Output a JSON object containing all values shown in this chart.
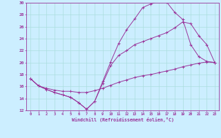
{
  "title": "",
  "xlabel": "Windchill (Refroidissement éolien,°C)",
  "background_color": "#cceeff",
  "grid_color": "#aadddd",
  "line_color": "#993399",
  "xlim": [
    -0.5,
    23.5
  ],
  "ylim": [
    12,
    30
  ],
  "xticks": [
    0,
    1,
    2,
    3,
    4,
    5,
    6,
    7,
    8,
    9,
    10,
    11,
    12,
    13,
    14,
    15,
    16,
    17,
    18,
    19,
    20,
    21,
    22,
    23
  ],
  "yticks": [
    12,
    14,
    16,
    18,
    20,
    22,
    24,
    26,
    28,
    30
  ],
  "line1_x": [
    0,
    1,
    2,
    3,
    4,
    5,
    6,
    7,
    8,
    9,
    10,
    11,
    12,
    13,
    14,
    15,
    16,
    17,
    18,
    19,
    20,
    21,
    22,
    23
  ],
  "line1_y": [
    17.3,
    16.1,
    15.5,
    15.0,
    14.6,
    14.2,
    13.3,
    12.2,
    13.5,
    16.8,
    20.1,
    23.2,
    25.5,
    27.3,
    29.2,
    29.8,
    30.2,
    30.1,
    28.4,
    27.2,
    23.0,
    21.0,
    20.2,
    20.0
  ],
  "line2_x": [
    0,
    1,
    2,
    3,
    4,
    5,
    6,
    7,
    8,
    9,
    10,
    11,
    12,
    13,
    14,
    15,
    16,
    17,
    18,
    19,
    20,
    21,
    22,
    23
  ],
  "line2_y": [
    17.3,
    16.1,
    15.5,
    15.0,
    14.6,
    14.2,
    13.3,
    12.2,
    13.5,
    16.5,
    19.5,
    21.2,
    22.0,
    23.0,
    23.5,
    24.0,
    24.5,
    25.0,
    25.8,
    26.8,
    26.5,
    24.5,
    23.0,
    20.0
  ],
  "line3_x": [
    0,
    1,
    2,
    3,
    4,
    5,
    6,
    7,
    8,
    9,
    10,
    11,
    12,
    13,
    14,
    15,
    16,
    17,
    18,
    19,
    20,
    21,
    22,
    23
  ],
  "line3_y": [
    17.3,
    16.1,
    15.7,
    15.4,
    15.2,
    15.2,
    15.0,
    15.0,
    15.3,
    15.7,
    16.2,
    16.7,
    17.1,
    17.5,
    17.8,
    18.0,
    18.3,
    18.6,
    18.9,
    19.3,
    19.6,
    19.9,
    20.1,
    20.0
  ]
}
